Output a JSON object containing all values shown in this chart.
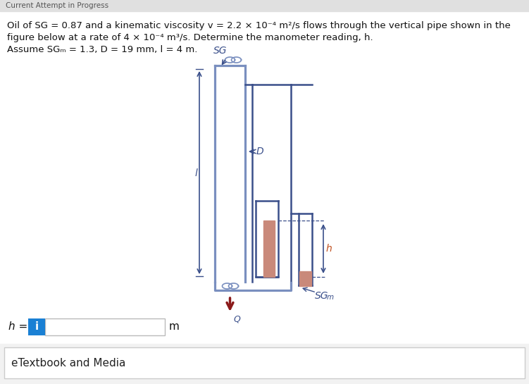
{
  "bg_color": "#ffffff",
  "pipe_color": "#3a4f8a",
  "pipe_color_light": "#7a8fbf",
  "manometer_fluid_color": "#c9897a",
  "pipe_lw": 1.8,
  "label_color": "#3a4f8a",
  "arrow_color": "#8b1a1a",
  "input_box_color": "#1a80d4",
  "footer_bg": "#f2f2f2",
  "line1": "Oil of SG = 0.87 and a kinematic viscosity v = 2.2 × 10⁻⁴ m²/s flows through the vertical pipe shown in the",
  "line2": "figure below at a rate of 4 × 10⁻⁴ m³/s. Determine the manometer reading, h.",
  "line3": "Assume SGₘ = 1.3, D = 19 mm, l = 4 m."
}
